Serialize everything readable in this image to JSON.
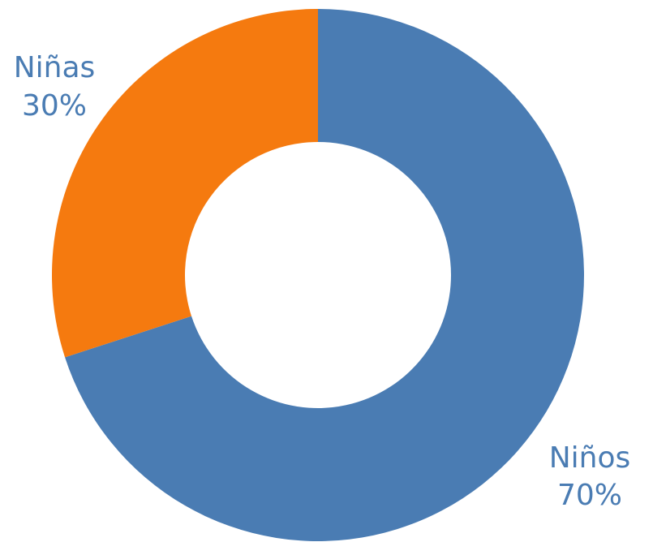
{
  "chart_data": {
    "type": "pie",
    "donut": true,
    "title": "",
    "categories": [
      "Niños",
      "Niñas"
    ],
    "values": [
      70,
      30
    ],
    "labels": [
      {
        "name": "Niños",
        "value_text": "70%"
      },
      {
        "name": "Niñas",
        "value_text": "30%"
      }
    ],
    "colors": [
      "#4a7cb3",
      "#f57a0f"
    ],
    "label_color": "#4a7cb3",
    "start": "12 o'clock",
    "direction": "clockwise",
    "legend": "none"
  }
}
